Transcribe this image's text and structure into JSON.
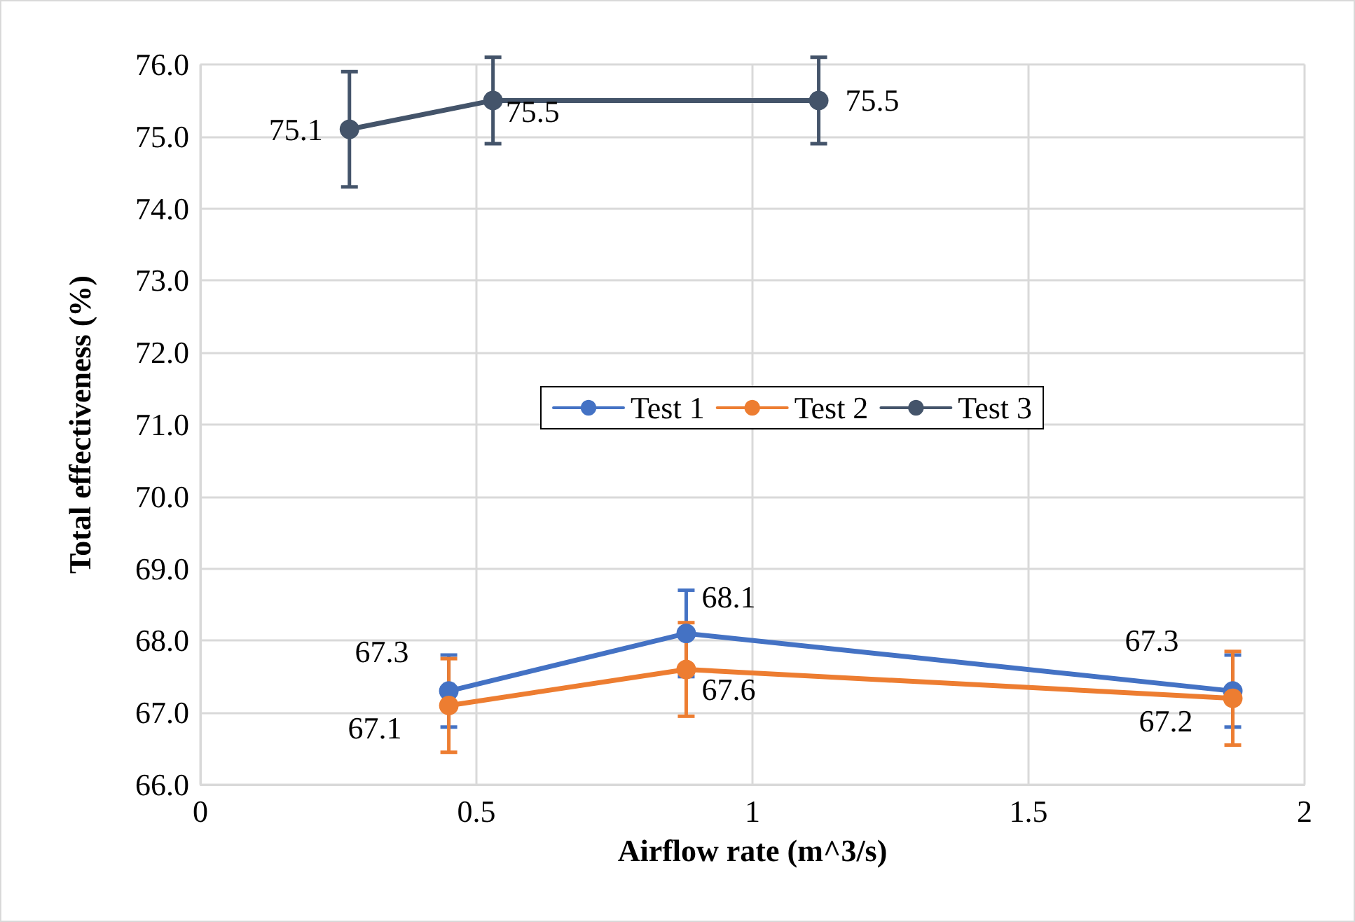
{
  "chart_data": {
    "type": "line",
    "xlabel": "Airflow rate (m^3/s)",
    "ylabel": "Total effectiveness (%)",
    "xlim": [
      0,
      2
    ],
    "xticks": [
      0,
      0.5,
      1,
      1.5,
      2
    ],
    "ylim": [
      66,
      76
    ],
    "yticks": [
      {
        "value": 66,
        "label": "66.0"
      },
      {
        "value": 67,
        "label": "67.0"
      },
      {
        "value": 68,
        "label": "68.0"
      },
      {
        "value": 69,
        "label": "69.0"
      },
      {
        "value": 70,
        "label": "70.0"
      },
      {
        "value": 71,
        "label": "71.0"
      },
      {
        "value": 72,
        "label": "72.0"
      },
      {
        "value": 73,
        "label": "73.0"
      },
      {
        "value": 74,
        "label": "74.0"
      },
      {
        "value": 75,
        "label": "75.0"
      },
      {
        "value": 76,
        "label": "76.0"
      }
    ],
    "grid": true,
    "legend": "center",
    "marker": "circle",
    "line_style": "solid",
    "data_labels": true,
    "series": [
      {
        "name": "Test 1",
        "color": "#4472c4",
        "x": [
          0.45,
          0.88,
          1.87
        ],
        "values": [
          67.3,
          68.1,
          67.3
        ],
        "errors": [
          0.5,
          0.6,
          0.5
        ]
      },
      {
        "name": "Test 2",
        "color": "#ed7d31",
        "x": [
          0.45,
          0.88,
          1.87
        ],
        "values": [
          67.1,
          67.6,
          67.2
        ],
        "errors": [
          0.65,
          0.65,
          0.65
        ]
      },
      {
        "name": "Test 3",
        "color": "#44546a",
        "x": [
          0.27,
          0.53,
          1.12
        ],
        "values": [
          75.1,
          75.5,
          75.5
        ],
        "errors": [
          0.8,
          0.6,
          0.6
        ]
      }
    ]
  }
}
